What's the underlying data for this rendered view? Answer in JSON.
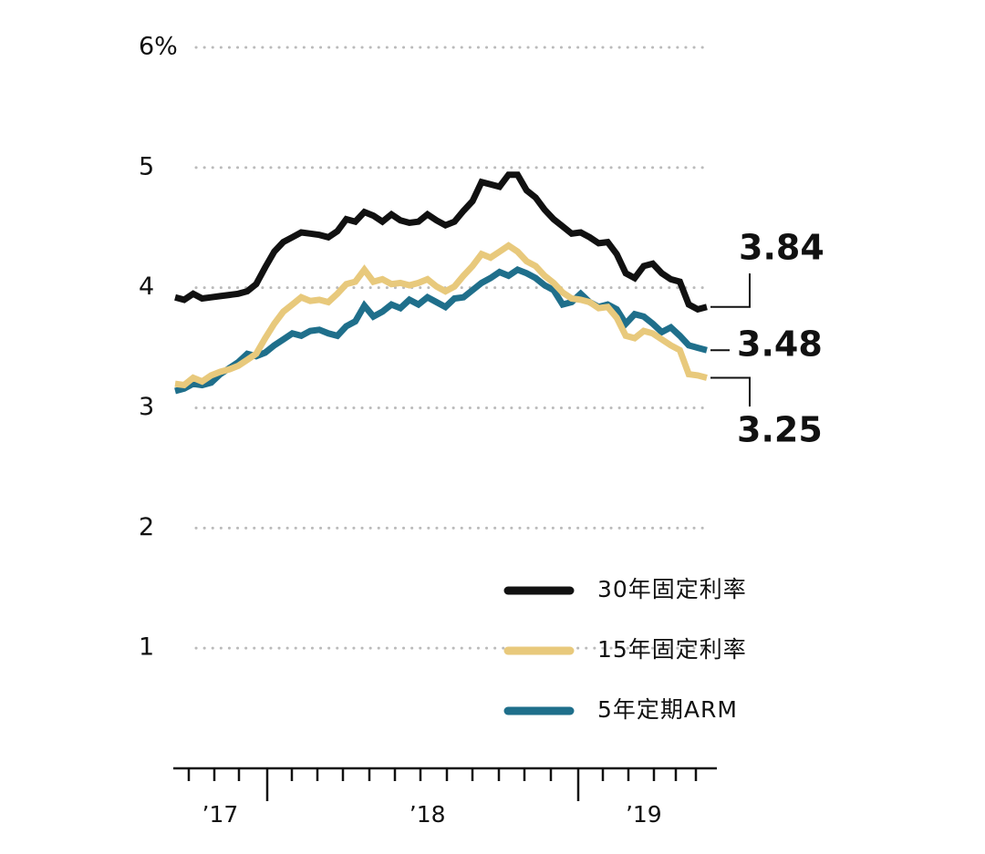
{
  "chart_data": {
    "type": "line",
    "categories": [
      null,
      null,
      null,
      null,
      null,
      "’17",
      null,
      null,
      null,
      null,
      null,
      null,
      null,
      null,
      null,
      null,
      null,
      null,
      null,
      null,
      null,
      null,
      null,
      null,
      null,
      null,
      null,
      null,
      "’18",
      null,
      null,
      null,
      null,
      null,
      null,
      null,
      null,
      null,
      null,
      null,
      null,
      null,
      null,
      null,
      null,
      null,
      null,
      null,
      null,
      null,
      null,
      null,
      "’19",
      null,
      null,
      null,
      null,
      null,
      null,
      null
    ],
    "series": [
      {
        "name": "30年固定利率",
        "color": "#111111",
        "values": [
          3.92,
          3.9,
          3.95,
          3.91,
          3.92,
          3.93,
          3.94,
          3.95,
          3.97,
          4.03,
          4.17,
          4.3,
          4.38,
          4.42,
          4.46,
          4.45,
          4.44,
          4.42,
          4.47,
          4.57,
          4.55,
          4.63,
          4.6,
          4.55,
          4.61,
          4.56,
          4.54,
          4.55,
          4.61,
          4.56,
          4.52,
          4.55,
          4.64,
          4.72,
          4.88,
          4.86,
          4.84,
          4.94,
          4.94,
          4.81,
          4.75,
          4.65,
          4.57,
          4.51,
          4.45,
          4.46,
          4.42,
          4.37,
          4.38,
          4.28,
          4.12,
          4.08,
          4.18,
          4.2,
          4.12,
          4.07,
          4.05,
          3.86,
          3.82,
          3.84
        ]
      },
      {
        "name": "15年固定利率",
        "color": "#e8c97c",
        "values": [
          3.2,
          3.19,
          3.25,
          3.22,
          3.27,
          3.3,
          3.32,
          3.35,
          3.4,
          3.45,
          3.58,
          3.7,
          3.8,
          3.86,
          3.92,
          3.89,
          3.9,
          3.88,
          3.95,
          4.03,
          4.05,
          4.15,
          4.05,
          4.07,
          4.03,
          4.04,
          4.02,
          4.04,
          4.07,
          4.01,
          3.97,
          4.01,
          4.1,
          4.18,
          4.28,
          4.25,
          4.3,
          4.35,
          4.3,
          4.22,
          4.18,
          4.1,
          4.04,
          3.96,
          3.91,
          3.9,
          3.88,
          3.83,
          3.84,
          3.75,
          3.6,
          3.58,
          3.64,
          3.62,
          3.57,
          3.52,
          3.48,
          3.28,
          3.27,
          3.25
        ]
      },
      {
        "name": "5年定期ARM",
        "color": "#1f6f8b",
        "values": [
          3.14,
          3.16,
          3.2,
          3.19,
          3.21,
          3.28,
          3.33,
          3.38,
          3.45,
          3.43,
          3.46,
          3.52,
          3.57,
          3.62,
          3.6,
          3.64,
          3.65,
          3.62,
          3.6,
          3.68,
          3.72,
          3.85,
          3.76,
          3.8,
          3.86,
          3.83,
          3.9,
          3.86,
          3.92,
          3.88,
          3.84,
          3.91,
          3.92,
          3.98,
          4.04,
          4.08,
          4.13,
          4.1,
          4.15,
          4.12,
          4.08,
          4.02,
          3.98,
          3.86,
          3.88,
          3.95,
          3.88,
          3.84,
          3.86,
          3.82,
          3.7,
          3.78,
          3.76,
          3.7,
          3.63,
          3.67,
          3.6,
          3.52,
          3.5,
          3.48
        ]
      }
    ],
    "ylim": [
      0,
      6
    ],
    "yticks": [
      1,
      2,
      3,
      4,
      5,
      {
        "value": 6,
        "label": "6%"
      }
    ],
    "grid": true
  }
}
